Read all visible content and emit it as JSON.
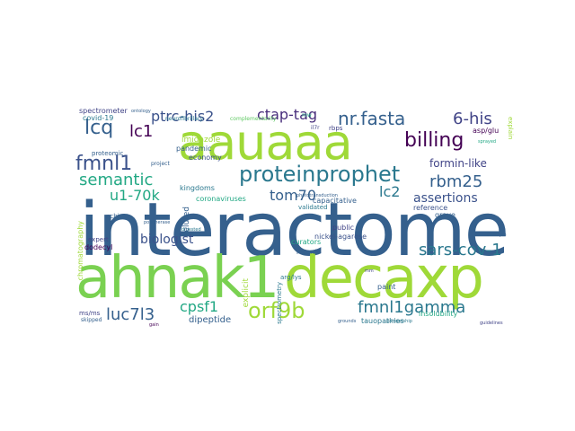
{
  "palette": {
    "dark_blue": "#35608d",
    "green": "#9fd938",
    "teal": "#2a788e",
    "sea": "#22a884",
    "purple": "#472d7b",
    "deep_purple": "#440154",
    "lime": "#7ad151",
    "mint": "#5ec962",
    "indigo": "#3b528b",
    "grey_blue": "#414487"
  },
  "words": {
    "interactome": "interactome",
    "ahnak1": "ahnak1",
    "decaxp": "decaxp",
    "aauaaa": "aauaaa",
    "proteinprophet": "proteinprophet",
    "nr_fasta": "nr.fasta",
    "ptrc_his2": "ptrc-his2",
    "ctap_tag": "ctap-tag",
    "six_his": "6-his",
    "lcq": "lcq",
    "lc1": "lc1",
    "fmnl1": "fmnl1",
    "semantic": "semantic",
    "billing": "billing",
    "rbm25": "rbm25",
    "formin_like": "formin-like",
    "assertions": "assertions",
    "lc2": "lc2",
    "u1_70k": "u1-70k",
    "tom70": "tom70",
    "sars_cov_1": "sars-cov-1",
    "biologist": "biologist",
    "fmnl1gamma": "fmnl1gamma",
    "orf9b": "orf9b",
    "luc7l3": "luc7l3",
    "cpsf1": "cpsf1",
    "spectrometer": "spectrometer",
    "covid_19": "covid-19",
    "proteomic": "proteomic",
    "imidazole": "imidazole",
    "pandemic": "pandemic",
    "economy": "economy",
    "kingdoms": "kingdoms",
    "coronaviruses": "coronaviruses",
    "capacitative": "capacitative",
    "validated": "validated",
    "public": "public",
    "nickel_agarose": "nickel-agarose",
    "grave": "grave",
    "reference": "reference",
    "curators": "curators",
    "record": "record",
    "eluted": "eluted",
    "dodecyl": "dodecyl",
    "expert": "expert",
    "ncbi": "ncbi",
    "arg_lys": "arg/lys",
    "ms_ms": "ms/ms",
    "dipeptide": "dipeptide",
    "tauopathies": "tauopathies",
    "insolubility": "insolubility",
    "paint": "paint",
    "asp_glu": "asp/glu",
    "rbps": "rbps",
    "project": "project",
    "neurofibrillary": "neurofibrillary",
    "complementarity": "complementarity",
    "il7r": "il7r",
    "explicit": "explicit",
    "skipped": "skipped",
    "spectrometry": "spectrometry",
    "digested": "digested",
    "polymerase": "polymerase",
    "explain": "explain",
    "mw": "mw",
    "chromatography": "chromatography",
    "grounds": "grounds",
    "guidelines": "guidelines",
    "ontology": "ontology",
    "partnership": "partnership",
    "example": "example",
    "gain": "gain",
    "phototransduction": "phototransduction",
    "sprayed": "sprayed",
    "mm": "mm"
  }
}
